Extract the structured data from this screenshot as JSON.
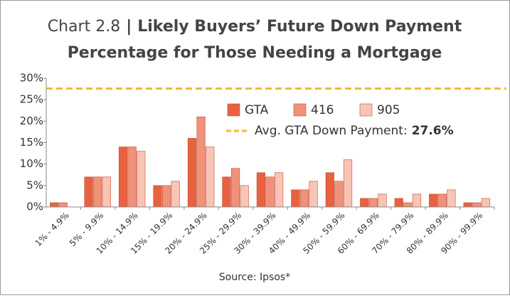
{
  "chart_data": {
    "type": "bar",
    "title_prefix": "Chart 2.8",
    "title_separator": "|",
    "title": [
      "Likely Buyers’ Future Down Payment",
      "Percentage for Those Needing a Mortgage"
    ],
    "source": "Source: Ipsos*",
    "categories": [
      "1% - 4.9%",
      "5% - 9.9%",
      "10% - 14.9%",
      "15% - 19.9%",
      "20% - 24.9%",
      "25% - 29.9%",
      "30% - 39.9%",
      "40% - 49.9%",
      "50% - 59.9%",
      "60% - 69.9%",
      "70% - 79.9%",
      "80% - 89.9%",
      "90% - 99.9%"
    ],
    "series": [
      {
        "name": "GTA",
        "color": "#e8623f",
        "values": [
          1,
          7,
          14,
          5,
          16,
          7,
          8,
          4,
          8,
          2,
          2,
          3,
          1
        ]
      },
      {
        "name": "416",
        "color": "#f0917a",
        "values": [
          1,
          7,
          14,
          5,
          21,
          9,
          7,
          4,
          6,
          2,
          1,
          3,
          1
        ]
      },
      {
        "name": "905",
        "color": "#f8c4b6",
        "values": [
          0,
          7,
          13,
          6,
          14,
          5,
          8,
          6,
          11,
          3,
          3,
          4,
          2
        ]
      }
    ],
    "reference_line": {
      "label": "Avg. GTA Down Payment:",
      "value": 27.6,
      "value_label": "27.6%",
      "color": "#f0b93a"
    },
    "ylim": [
      0,
      30
    ],
    "yticks": [
      {
        "value": 0,
        "label": "0%"
      },
      {
        "value": 5,
        "label": "5%"
      },
      {
        "value": 10,
        "label": "10%"
      },
      {
        "value": 15,
        "label": "15%"
      },
      {
        "value": 20,
        "label": "20%"
      },
      {
        "value": 25,
        "label": "25%"
      },
      {
        "value": 30,
        "label": "30%"
      }
    ]
  }
}
